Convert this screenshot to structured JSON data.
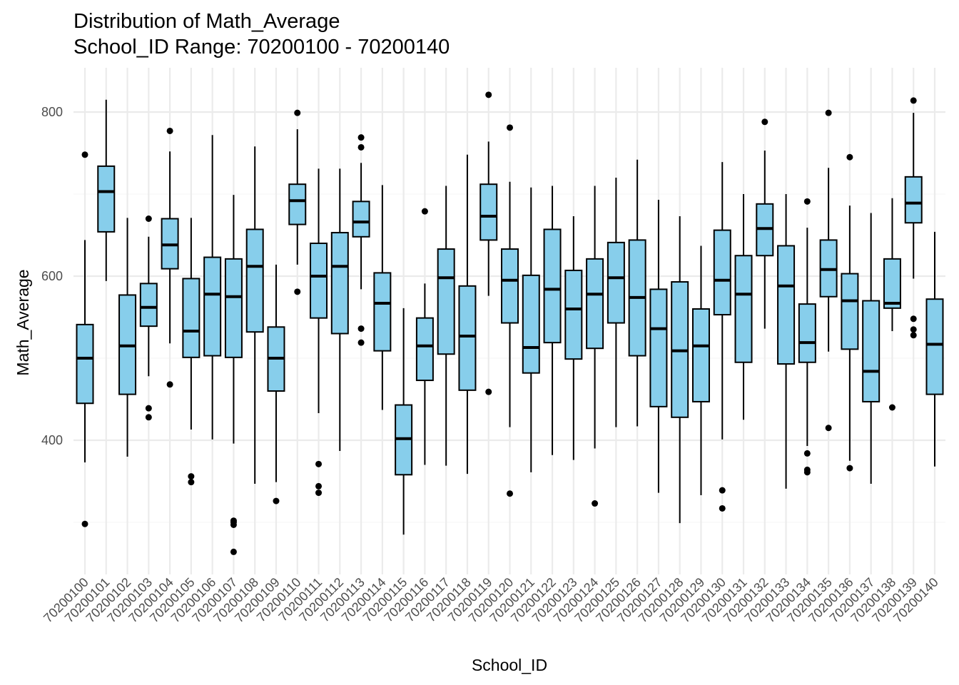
{
  "chart_data": {
    "type": "boxplot",
    "title": "Distribution of Math_Average",
    "subtitle": "School_ID Range: 70200100 - 70200140",
    "xlabel": "School_ID",
    "ylabel": "Math_Average",
    "ylim": [
      225,
      845
    ],
    "y_ticks": [
      400,
      600,
      800
    ],
    "grid": true,
    "colors": {
      "box_fill": "#87CEEB",
      "box_stroke": "#000000",
      "grid_major": "#ebebeb",
      "grid_minor": "#f5f5f5"
    },
    "categories": [
      "70200100",
      "70200101",
      "70200102",
      "70200103",
      "70200104",
      "70200105",
      "70200106",
      "70200107",
      "70200108",
      "70200109",
      "70200110",
      "70200111",
      "70200112",
      "70200113",
      "70200114",
      "70200115",
      "70200116",
      "70200117",
      "70200118",
      "70200119",
      "70200120",
      "70200121",
      "70200122",
      "70200123",
      "70200124",
      "70200125",
      "70200126",
      "70200127",
      "70200128",
      "70200129",
      "70200130",
      "70200131",
      "70200132",
      "70200133",
      "70200134",
      "70200135",
      "70200136",
      "70200137",
      "70200138",
      "70200139",
      "70200140"
    ],
    "boxes": [
      {
        "min": 373,
        "q1": 445,
        "median": 500,
        "q3": 541,
        "max": 644,
        "outliers": [
          748,
          298
        ]
      },
      {
        "min": 594,
        "q1": 654,
        "median": 703,
        "q3": 734,
        "max": 815,
        "outliers": []
      },
      {
        "min": 380,
        "q1": 456,
        "median": 515,
        "q3": 577,
        "max": 671,
        "outliers": []
      },
      {
        "min": 478,
        "q1": 539,
        "median": 562,
        "q3": 591,
        "max": 648,
        "outliers": [
          670,
          439,
          428
        ]
      },
      {
        "min": 518,
        "q1": 609,
        "median": 638,
        "q3": 670,
        "max": 752,
        "outliers": [
          777,
          468
        ]
      },
      {
        "min": 413,
        "q1": 501,
        "median": 533,
        "q3": 597,
        "max": 671,
        "outliers": [
          356,
          349
        ]
      },
      {
        "min": 401,
        "q1": 503,
        "median": 578,
        "q3": 623,
        "max": 772,
        "outliers": []
      },
      {
        "min": 396,
        "q1": 501,
        "median": 575,
        "q3": 621,
        "max": 699,
        "outliers": [
          302,
          300,
          297,
          264
        ]
      },
      {
        "min": 347,
        "q1": 532,
        "median": 612,
        "q3": 657,
        "max": 758,
        "outliers": []
      },
      {
        "min": 349,
        "q1": 460,
        "median": 500,
        "q3": 538,
        "max": 614,
        "outliers": [
          326
        ]
      },
      {
        "min": 614,
        "q1": 663,
        "median": 692,
        "q3": 712,
        "max": 779,
        "outliers": [
          799,
          581
        ]
      },
      {
        "min": 433,
        "q1": 549,
        "median": 600,
        "q3": 640,
        "max": 731,
        "outliers": [
          371,
          344,
          336
        ]
      },
      {
        "min": 387,
        "q1": 530,
        "median": 612,
        "q3": 653,
        "max": 731,
        "outliers": []
      },
      {
        "min": 584,
        "q1": 648,
        "median": 666,
        "q3": 691,
        "max": 738,
        "outliers": [
          769,
          757,
          536,
          519
        ]
      },
      {
        "min": 437,
        "q1": 509,
        "median": 567,
        "q3": 604,
        "max": 711,
        "outliers": []
      },
      {
        "min": 285,
        "q1": 358,
        "median": 402,
        "q3": 443,
        "max": 561,
        "outliers": []
      },
      {
        "min": 370,
        "q1": 473,
        "median": 515,
        "q3": 549,
        "max": 591,
        "outliers": [
          679
        ]
      },
      {
        "min": 369,
        "q1": 505,
        "median": 598,
        "q3": 633,
        "max": 710,
        "outliers": []
      },
      {
        "min": 359,
        "q1": 461,
        "median": 527,
        "q3": 588,
        "max": 748,
        "outliers": []
      },
      {
        "min": 576,
        "q1": 644,
        "median": 673,
        "q3": 712,
        "max": 764,
        "outliers": [
          821,
          459
        ]
      },
      {
        "min": 416,
        "q1": 543,
        "median": 595,
        "q3": 633,
        "max": 715,
        "outliers": [
          781,
          335
        ]
      },
      {
        "min": 361,
        "q1": 482,
        "median": 513,
        "q3": 601,
        "max": 708,
        "outliers": []
      },
      {
        "min": 382,
        "q1": 519,
        "median": 584,
        "q3": 657,
        "max": 710,
        "outliers": []
      },
      {
        "min": 376,
        "q1": 499,
        "median": 560,
        "q3": 607,
        "max": 673,
        "outliers": []
      },
      {
        "min": 390,
        "q1": 512,
        "median": 578,
        "q3": 621,
        "max": 710,
        "outliers": [
          323
        ]
      },
      {
        "min": 416,
        "q1": 543,
        "median": 598,
        "q3": 641,
        "max": 720,
        "outliers": []
      },
      {
        "min": 417,
        "q1": 503,
        "median": 574,
        "q3": 644,
        "max": 742,
        "outliers": []
      },
      {
        "min": 336,
        "q1": 441,
        "median": 536,
        "q3": 584,
        "max": 693,
        "outliers": []
      },
      {
        "min": 299,
        "q1": 428,
        "median": 509,
        "q3": 593,
        "max": 673,
        "outliers": []
      },
      {
        "min": 333,
        "q1": 447,
        "median": 515,
        "q3": 560,
        "max": 637,
        "outliers": []
      },
      {
        "min": 401,
        "q1": 553,
        "median": 595,
        "q3": 656,
        "max": 739,
        "outliers": [
          339,
          317
        ]
      },
      {
        "min": 425,
        "q1": 495,
        "median": 578,
        "q3": 625,
        "max": 700,
        "outliers": []
      },
      {
        "min": 536,
        "q1": 625,
        "median": 658,
        "q3": 688,
        "max": 753,
        "outliers": [
          788
        ]
      },
      {
        "min": 341,
        "q1": 493,
        "median": 588,
        "q3": 637,
        "max": 700,
        "outliers": []
      },
      {
        "min": 393,
        "q1": 495,
        "median": 519,
        "q3": 566,
        "max": 659,
        "outliers": [
          691,
          384,
          364,
          361
        ]
      },
      {
        "min": 508,
        "q1": 575,
        "median": 608,
        "q3": 644,
        "max": 732,
        "outliers": [
          799,
          415
        ]
      },
      {
        "min": 375,
        "q1": 511,
        "median": 570,
        "q3": 603,
        "max": 686,
        "outliers": [
          745,
          366
        ]
      },
      {
        "min": 347,
        "q1": 447,
        "median": 484,
        "q3": 570,
        "max": 677,
        "outliers": []
      },
      {
        "min": 533,
        "q1": 561,
        "median": 567,
        "q3": 621,
        "max": 695,
        "outliers": [
          440
        ]
      },
      {
        "min": 597,
        "q1": 665,
        "median": 689,
        "q3": 721,
        "max": 799,
        "outliers": [
          814,
          548,
          535,
          528
        ]
      },
      {
        "min": 368,
        "q1": 456,
        "median": 517,
        "q3": 572,
        "max": 654,
        "outliers": []
      }
    ]
  }
}
